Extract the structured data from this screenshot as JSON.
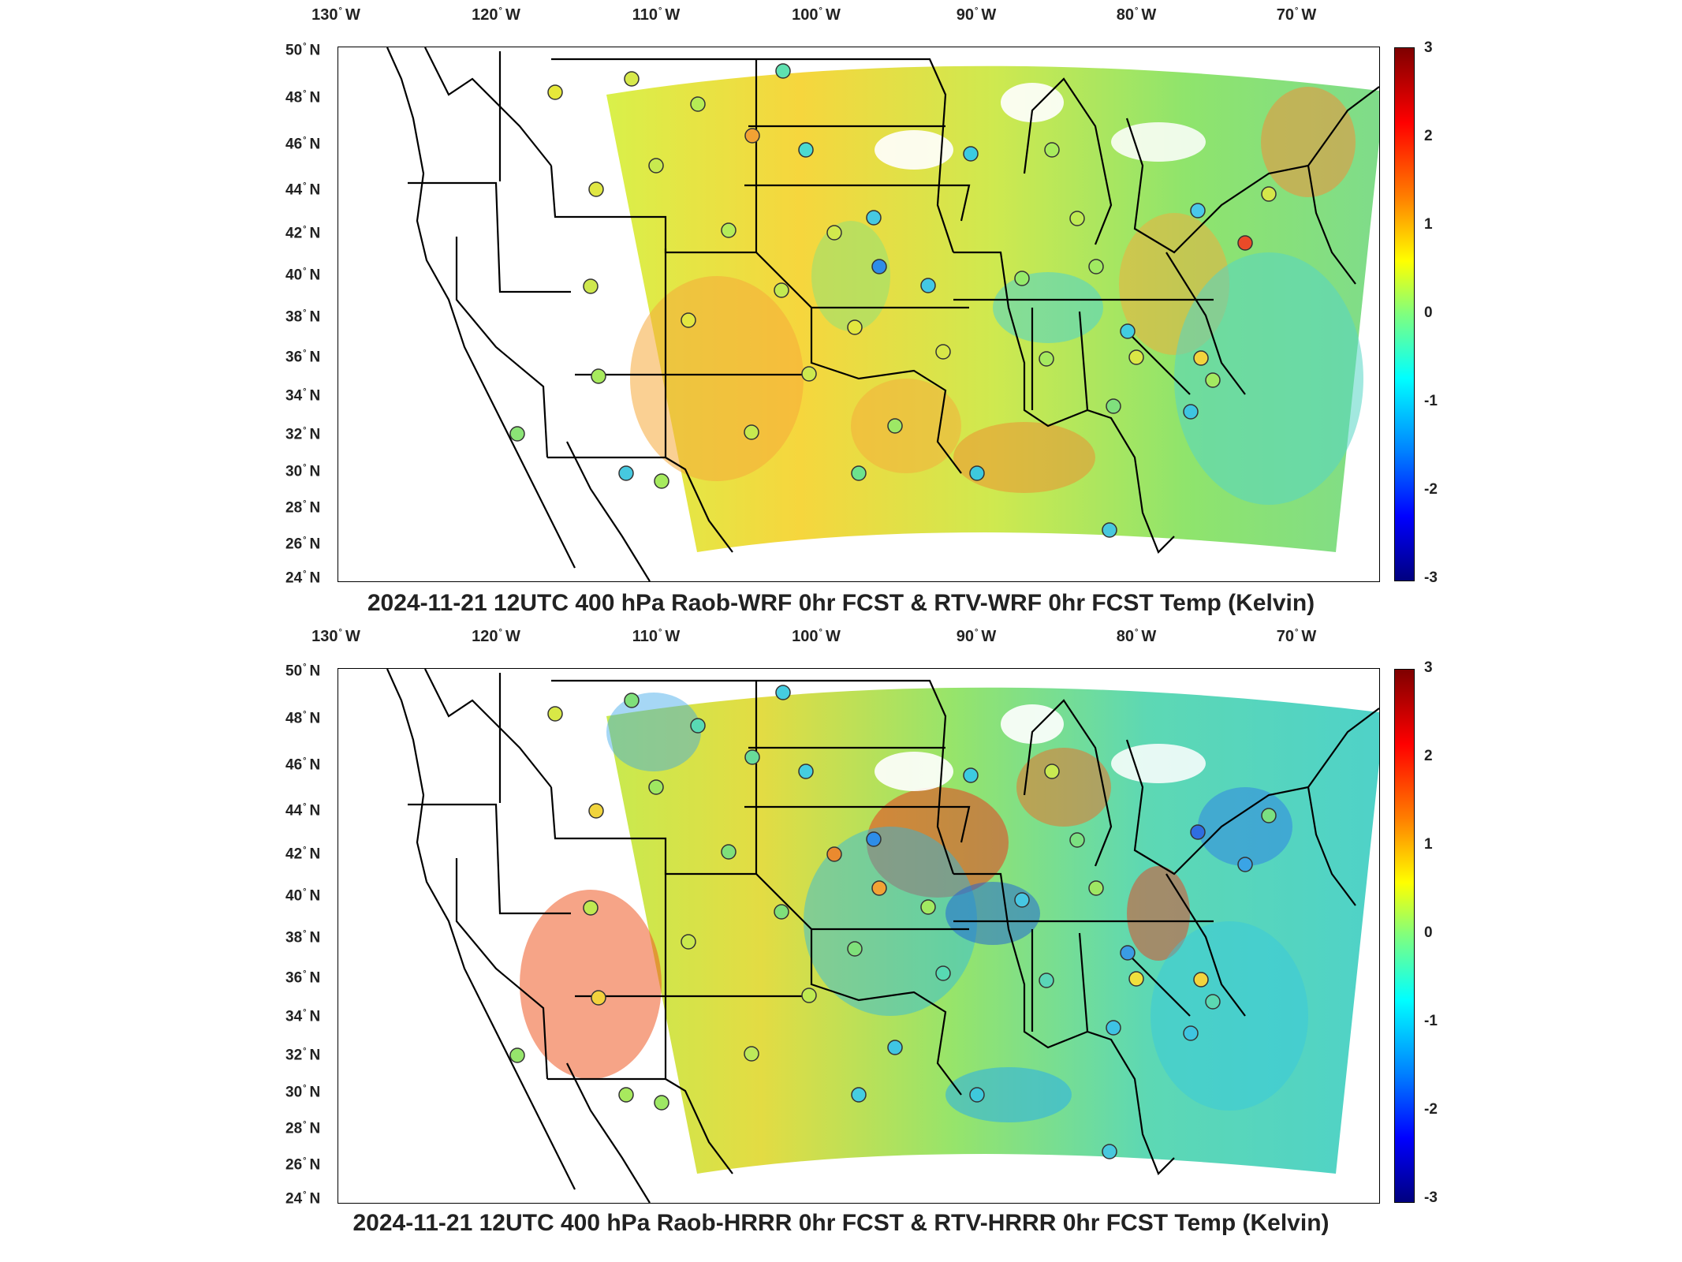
{
  "lon_ticks": [
    "130",
    "120",
    "110",
    "100",
    "90",
    "80",
    "70"
  ],
  "lon_suffix": "W",
  "lat_ticks": [
    "50",
    "48",
    "46",
    "44",
    "42",
    "40",
    "38",
    "36",
    "34",
    "32",
    "30",
    "28",
    "26",
    "24"
  ],
  "lat_suffix": "N",
  "colorbar": {
    "ticks": [
      "3",
      "2",
      "1",
      "0",
      "-1",
      "-2",
      "-3"
    ],
    "range": [
      -3,
      3
    ]
  },
  "panels": [
    {
      "title": "2024-11-21 12UTC 400 hPa Raob-WRF 0hr FCST & RTV-WRF 0hr FCST Temp (Kelvin)"
    },
    {
      "title": "2024-11-21 12UTC 400 hPa Raob-HRRR 0hr FCST & RTV-HRRR 0hr FCST Temp (Kelvin)"
    }
  ],
  "colors": {
    "field_warm": "#ffd23a",
    "field_mid": "#a6ec5a",
    "field_cool": "#3fd3d2",
    "hot": "#ef3c1e",
    "cold": "#1f5bd8"
  }
}
